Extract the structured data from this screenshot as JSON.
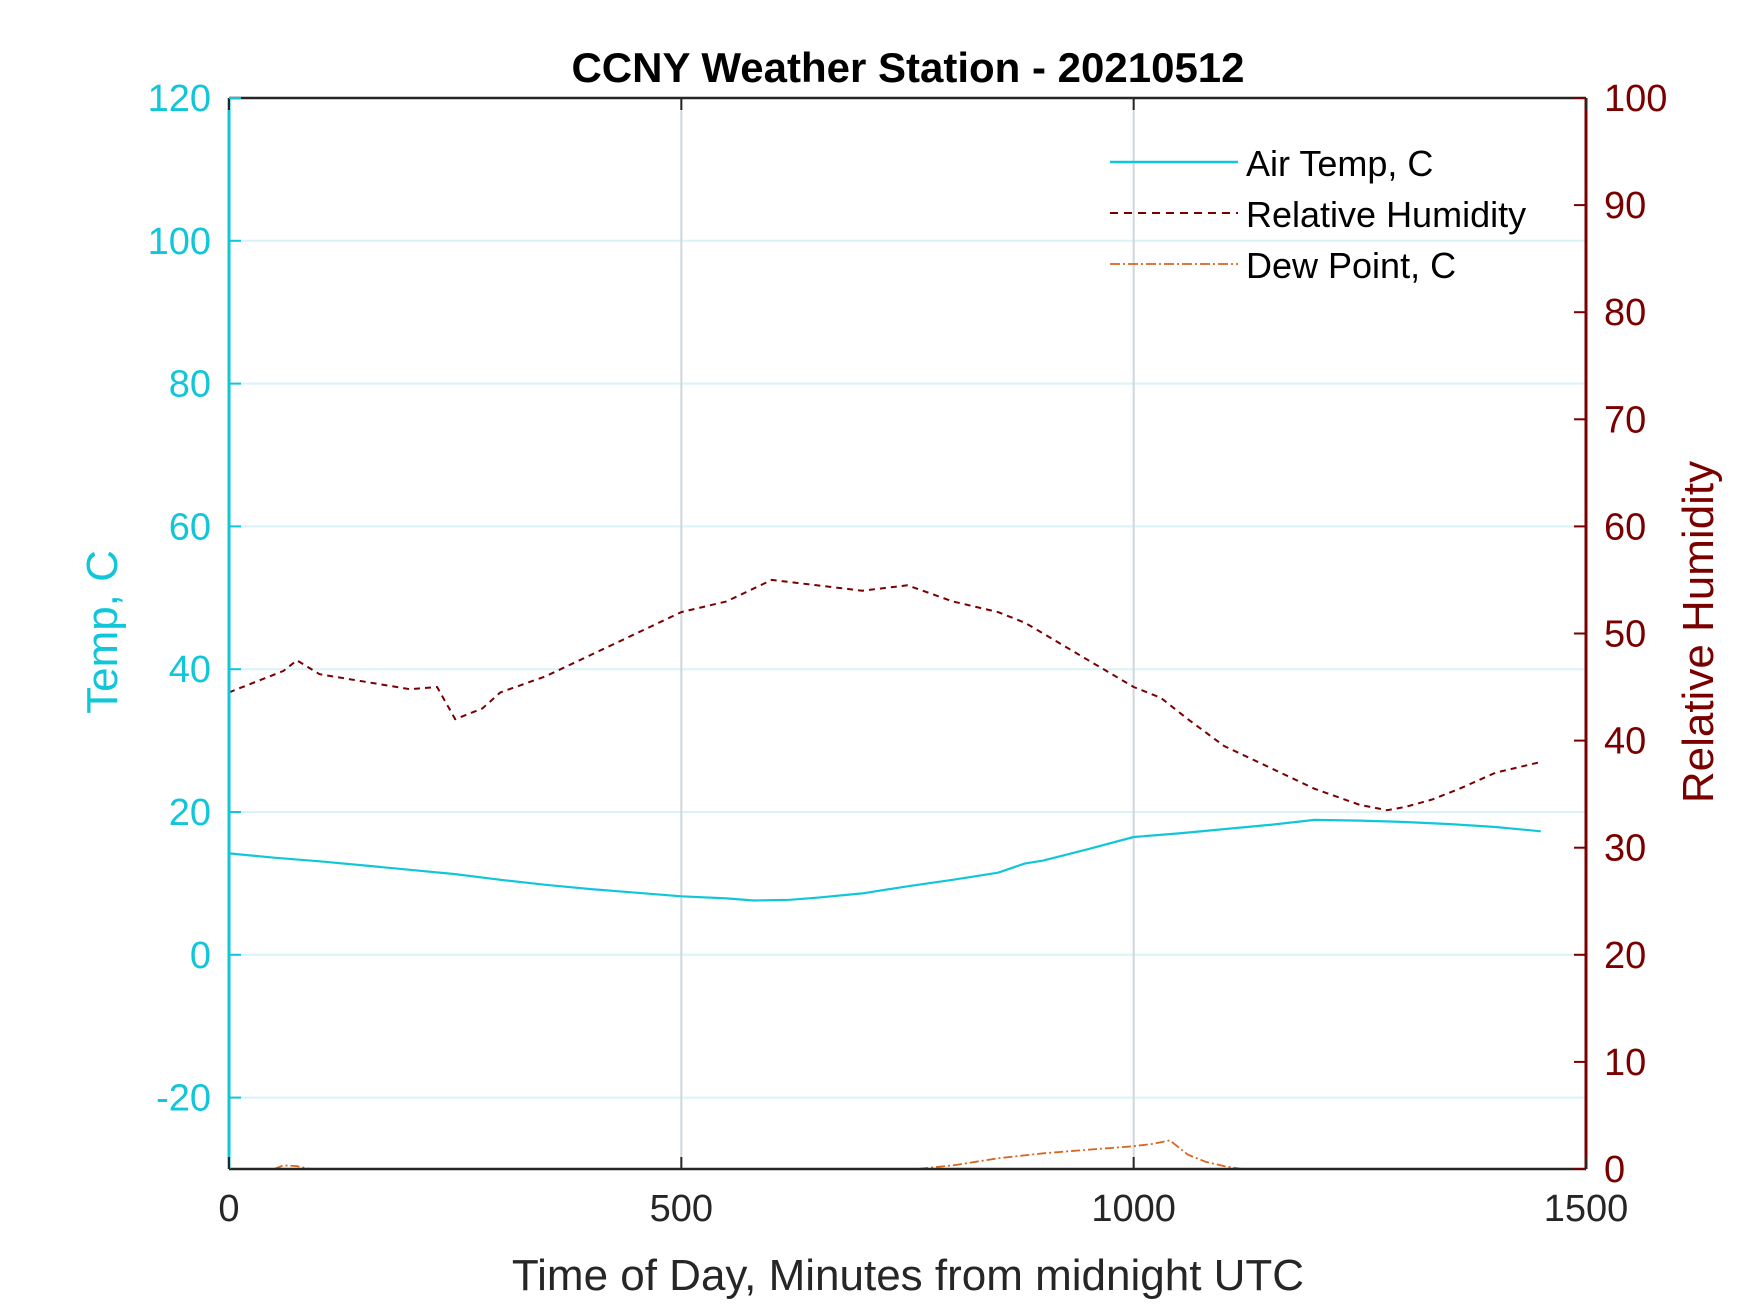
{
  "chart_data": {
    "type": "line",
    "title": "CCNY Weather Station - 20210512",
    "xlabel": "Time of Day, Minutes from midnight UTC",
    "ylabel_left": "Temp, C",
    "ylabel_right": "Relative Humidity",
    "xlim": [
      0,
      1500
    ],
    "ylim_left": [
      -30,
      120
    ],
    "ylim_right": [
      0,
      100
    ],
    "xticks": [
      0,
      500,
      1000,
      1500
    ],
    "yticks_left": [
      120,
      100,
      80,
      60,
      40,
      20,
      0,
      -20
    ],
    "yticks_right": [
      100,
      90,
      80,
      70,
      60,
      50,
      40,
      30,
      20,
      10,
      0
    ],
    "grid_x": true,
    "grid_y_left": true,
    "legend_placement": "top-right",
    "colors": {
      "left_axis": "#12c6da",
      "right_axis": "#7a0000",
      "temp": "#12c6da",
      "rh": "#7a0000",
      "dew": "#d9661f",
      "grid_x": "#cfd6dc",
      "grid_y": "#d9f3f8"
    },
    "series": [
      {
        "name": "Air Temp, C",
        "axis": "left",
        "style": "solid",
        "x": [
          0,
          50,
          100,
          150,
          200,
          250,
          300,
          350,
          400,
          450,
          500,
          550,
          580,
          620,
          650,
          700,
          750,
          800,
          850,
          880,
          900,
          950,
          1000,
          1050,
          1100,
          1150,
          1200,
          1250,
          1300,
          1350,
          1400,
          1450
        ],
        "values": [
          14.2,
          13.6,
          13.1,
          12.5,
          11.9,
          11.3,
          10.5,
          9.8,
          9.2,
          8.7,
          8.2,
          7.9,
          7.6,
          7.7,
          8.0,
          8.6,
          9.6,
          10.5,
          11.5,
          12.8,
          13.2,
          14.8,
          16.5,
          17.0,
          17.6,
          18.2,
          18.9,
          18.8,
          18.6,
          18.3,
          17.9,
          17.3
        ]
      },
      {
        "name": "Relative Humidity",
        "axis": "right",
        "style": "dashed",
        "x": [
          0,
          30,
          60,
          75,
          100,
          150,
          200,
          230,
          250,
          280,
          300,
          350,
          400,
          450,
          500,
          550,
          600,
          650,
          700,
          750,
          800,
          850,
          880,
          900,
          950,
          1000,
          1030,
          1060,
          1100,
          1150,
          1200,
          1250,
          1280,
          1300,
          1330,
          1360,
          1400,
          1450
        ],
        "values": [
          44.5,
          45.5,
          46.5,
          47.5,
          46.2,
          45.5,
          44.8,
          45.0,
          42.0,
          43.0,
          44.5,
          46.0,
          48.0,
          50.0,
          52.0,
          53.0,
          55.0,
          54.5,
          54.0,
          54.5,
          53.0,
          52.0,
          51.0,
          50.0,
          47.5,
          45.0,
          44.0,
          42.0,
          39.5,
          37.5,
          35.5,
          34.0,
          33.5,
          33.8,
          34.5,
          35.5,
          37.0,
          38.0
        ]
      },
      {
        "name": "Dew Point, C",
        "axis": "left",
        "style": "dashdot",
        "x": [
          50,
          60,
          75,
          90,
          760,
          800,
          850,
          900,
          950,
          1000,
          1020,
          1040,
          1060,
          1080,
          1100,
          1120
        ],
        "values": [
          -30,
          -29.5,
          -29.6,
          -30,
          -30,
          -29.5,
          -28.5,
          -27.8,
          -27.3,
          -26.8,
          -26.5,
          -26.0,
          -28.0,
          -29.0,
          -29.6,
          -30
        ]
      }
    ]
  }
}
